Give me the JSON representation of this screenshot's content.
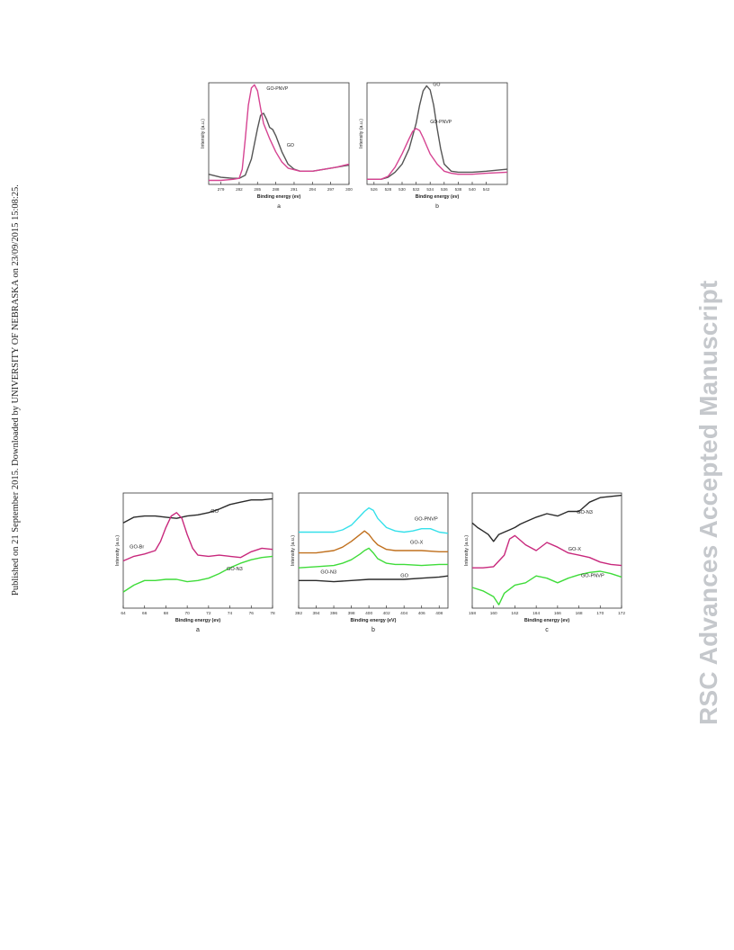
{
  "side_text": "Published on 21 September 2015. Downloaded by UNIVERSITY OF NEBRASKA on 23/09/2015 15:08:25.",
  "watermark": "RSC Advances Accepted Manuscript",
  "colors": {
    "black": "#2a2a2a",
    "magenta": "#c8287c",
    "pink": "#d64492",
    "green": "#3fdc3a",
    "cyan": "#35e0ea",
    "orange": "#c0701e",
    "gray": "#555555"
  },
  "chart_data": [
    {
      "id": "top_a",
      "type": "line",
      "panel_label": "a",
      "xlabel": "Binding energy (ev)",
      "ylabel": "Intensity (a.u.)",
      "xlim": [
        277,
        300
      ],
      "ylim": [
        0,
        1
      ],
      "ticks": [
        "279",
        "282",
        "285",
        "288",
        "291",
        "294",
        "297",
        "300"
      ],
      "tick_values": [
        279,
        282,
        285,
        288,
        291,
        294,
        297,
        300
      ],
      "series": [
        {
          "name": "GO",
          "color": "#555555",
          "x": [
            277,
            279,
            281,
            282,
            283,
            284,
            285,
            285.5,
            286,
            286.5,
            287,
            287.5,
            288,
            289,
            290,
            291,
            292,
            294,
            296,
            298,
            300
          ],
          "y": [
            0.1,
            0.07,
            0.06,
            0.06,
            0.09,
            0.25,
            0.55,
            0.68,
            0.7,
            0.64,
            0.56,
            0.54,
            0.48,
            0.32,
            0.2,
            0.15,
            0.13,
            0.13,
            0.15,
            0.17,
            0.19
          ]
        },
        {
          "name": "GO-PNVP",
          "color": "#d64492",
          "x": [
            277,
            279,
            281,
            282,
            282.5,
            283,
            283.5,
            284,
            284.5,
            285,
            285.5,
            286,
            287,
            288,
            289,
            290,
            292,
            294,
            296,
            298,
            300
          ],
          "y": [
            0.04,
            0.04,
            0.05,
            0.06,
            0.15,
            0.45,
            0.78,
            0.95,
            0.98,
            0.92,
            0.75,
            0.6,
            0.45,
            0.32,
            0.22,
            0.16,
            0.13,
            0.13,
            0.15,
            0.17,
            0.2
          ]
        }
      ],
      "labels": [
        {
          "text": "GO-PNVP",
          "x": 286.5,
          "y": 0.93
        },
        {
          "text": "GO",
          "x": 289.8,
          "y": 0.37
        }
      ]
    },
    {
      "id": "top_b",
      "type": "line",
      "panel_label": "b",
      "xlabel": "Binding energy (ev)",
      "ylabel": "Intensity (a.u.)",
      "xlim": [
        525,
        545
      ],
      "ylim": [
        0,
        1
      ],
      "ticks": [
        "526",
        "528",
        "530",
        "532",
        "534",
        "536",
        "538",
        "540",
        "542"
      ],
      "tick_values": [
        526,
        528,
        530,
        532,
        534,
        536,
        538,
        540,
        542
      ],
      "series": [
        {
          "name": "GO",
          "color": "#555555",
          "x": [
            525,
            527,
            528,
            529,
            530,
            531,
            532,
            532.5,
            533,
            533.5,
            534,
            534.5,
            535,
            535.5,
            536,
            537,
            538,
            540,
            542,
            545
          ],
          "y": [
            0.05,
            0.05,
            0.07,
            0.12,
            0.2,
            0.35,
            0.6,
            0.78,
            0.92,
            0.97,
            0.93,
            0.78,
            0.55,
            0.35,
            0.2,
            0.13,
            0.12,
            0.12,
            0.13,
            0.15
          ]
        },
        {
          "name": "GO-PNVP",
          "color": "#d64492",
          "x": [
            525,
            527,
            528,
            529,
            530,
            531,
            531.5,
            532,
            532.5,
            533,
            533.5,
            534,
            535,
            536,
            537,
            538,
            540,
            542,
            545
          ],
          "y": [
            0.05,
            0.05,
            0.08,
            0.17,
            0.3,
            0.45,
            0.52,
            0.55,
            0.53,
            0.46,
            0.38,
            0.3,
            0.2,
            0.13,
            0.11,
            0.1,
            0.1,
            0.11,
            0.12
          ]
        }
      ],
      "labels": [
        {
          "text": "GO",
          "x": 534.4,
          "y": 0.97
        },
        {
          "text": "GO-PNVP",
          "x": 534.0,
          "y": 0.6
        }
      ]
    },
    {
      "id": "bottom_a",
      "type": "line",
      "panel_label": "a",
      "xlabel": "Binding energy (ev)",
      "ylabel": "Intensity (a.u.)",
      "xlim": [
        64,
        78
      ],
      "ylim": [
        0,
        1
      ],
      "ticks": [
        "64",
        "66",
        "68",
        "70",
        "72",
        "74",
        "76",
        "78"
      ],
      "tick_values": [
        64,
        66,
        68,
        70,
        72,
        74,
        76,
        78
      ],
      "series": [
        {
          "name": "GO",
          "color": "#2a2a2a",
          "x": [
            64,
            65,
            66,
            67,
            68,
            69,
            70,
            71,
            72,
            73,
            74,
            75,
            76,
            77,
            78
          ],
          "y": [
            0.74,
            0.79,
            0.8,
            0.8,
            0.79,
            0.78,
            0.8,
            0.81,
            0.83,
            0.86,
            0.9,
            0.92,
            0.94,
            0.94,
            0.95
          ]
        },
        {
          "name": "GO-Br",
          "color": "#c8287c",
          "x": [
            64,
            65,
            66,
            67,
            67.5,
            68,
            68.5,
            69,
            69.5,
            70,
            70.5,
            71,
            72,
            73,
            74,
            75,
            76,
            77,
            78
          ],
          "y": [
            0.41,
            0.45,
            0.47,
            0.5,
            0.58,
            0.7,
            0.8,
            0.83,
            0.78,
            0.64,
            0.52,
            0.46,
            0.45,
            0.46,
            0.45,
            0.44,
            0.49,
            0.52,
            0.51
          ]
        },
        {
          "name": "GO-N3",
          "color": "#3fdc3a",
          "x": [
            64,
            65,
            66,
            67,
            68,
            69,
            70,
            71,
            72,
            73,
            74,
            75,
            76,
            77,
            78
          ],
          "y": [
            0.14,
            0.2,
            0.24,
            0.24,
            0.25,
            0.25,
            0.23,
            0.24,
            0.26,
            0.3,
            0.35,
            0.39,
            0.42,
            0.44,
            0.45
          ]
        }
      ],
      "labels": [
        {
          "text": "GO",
          "x": 72.2,
          "y": 0.83
        },
        {
          "text": "GO-Br",
          "x": 64.6,
          "y": 0.52
        },
        {
          "text": "GO-N3",
          "x": 73.7,
          "y": 0.33
        }
      ]
    },
    {
      "id": "bottom_b",
      "type": "line",
      "panel_label": "b",
      "xlabel": "Binding energy (eV)",
      "ylabel": "Intensity (a.u.)",
      "xlim": [
        392,
        409
      ],
      "ylim": [
        0,
        1
      ],
      "ticks": [
        "392",
        "394",
        "396",
        "398",
        "400",
        "402",
        "404",
        "406",
        "408"
      ],
      "tick_values": [
        392,
        394,
        396,
        398,
        400,
        402,
        404,
        406,
        408
      ],
      "series": [
        {
          "name": "GO-PNVP",
          "color": "#35e0ea",
          "x": [
            392,
            394,
            396,
            397,
            398,
            399,
            399.5,
            400,
            400.5,
            401,
            402,
            403,
            404,
            405,
            406,
            407,
            408,
            409
          ],
          "y": [
            0.66,
            0.66,
            0.66,
            0.68,
            0.72,
            0.8,
            0.84,
            0.87,
            0.85,
            0.78,
            0.7,
            0.67,
            0.66,
            0.67,
            0.69,
            0.69,
            0.66,
            0.65
          ]
        },
        {
          "name": "GO-X",
          "color": "#c0701e",
          "x": [
            392,
            394,
            396,
            397,
            398,
            399,
            399.5,
            400,
            400.5,
            401,
            402,
            403,
            404,
            406,
            408,
            409
          ],
          "y": [
            0.48,
            0.48,
            0.5,
            0.53,
            0.58,
            0.64,
            0.67,
            0.64,
            0.59,
            0.55,
            0.51,
            0.5,
            0.5,
            0.5,
            0.49,
            0.49
          ]
        },
        {
          "name": "GO-N3",
          "color": "#3fdc3a",
          "x": [
            392,
            394,
            396,
            397,
            398,
            399,
            399.5,
            400,
            400.5,
            401,
            402,
            403,
            404,
            406,
            408,
            409
          ],
          "y": [
            0.35,
            0.36,
            0.37,
            0.39,
            0.42,
            0.47,
            0.5,
            0.52,
            0.48,
            0.43,
            0.39,
            0.38,
            0.38,
            0.37,
            0.38,
            0.38
          ]
        },
        {
          "name": "GO",
          "color": "#2a2a2a",
          "x": [
            392,
            394,
            396,
            398,
            400,
            402,
            404,
            406,
            408,
            409
          ],
          "y": [
            0.24,
            0.24,
            0.23,
            0.24,
            0.25,
            0.25,
            0.25,
            0.26,
            0.27,
            0.28
          ]
        }
      ],
      "labels": [
        {
          "text": "GO-PNVP",
          "x": 405.2,
          "y": 0.76
        },
        {
          "text": "GO-X",
          "x": 404.7,
          "y": 0.56
        },
        {
          "text": "GO-N3",
          "x": 394.5,
          "y": 0.3
        },
        {
          "text": "GO",
          "x": 403.6,
          "y": 0.27
        }
      ]
    },
    {
      "id": "bottom_c",
      "type": "line",
      "panel_label": "c",
      "xlabel": "Binding energy (ev)",
      "ylabel": "Intensity (a.u.)",
      "xlim": [
        158,
        172
      ],
      "ylim": [
        0,
        1
      ],
      "ticks": [
        "158",
        "160",
        "162",
        "164",
        "166",
        "168",
        "170",
        "172"
      ],
      "tick_values": [
        158,
        160,
        162,
        164,
        166,
        168,
        170,
        172
      ],
      "series": [
        {
          "name": "GO-N3",
          "color": "#2a2a2a",
          "x": [
            158,
            158.5,
            159,
            159.5,
            160,
            160.5,
            161,
            161.5,
            162,
            162.5,
            163,
            164,
            165,
            166,
            167,
            168,
            168.5,
            169,
            170,
            171,
            172
          ],
          "y": [
            0.74,
            0.7,
            0.67,
            0.64,
            0.58,
            0.64,
            0.66,
            0.68,
            0.7,
            0.73,
            0.75,
            0.79,
            0.82,
            0.8,
            0.84,
            0.84,
            0.88,
            0.92,
            0.96,
            0.97,
            0.98
          ]
        },
        {
          "name": "GO-X",
          "color": "#c8287c",
          "x": [
            158,
            159,
            160,
            161,
            161.5,
            162,
            162.5,
            163,
            164,
            165,
            166,
            167,
            168,
            169,
            170,
            171,
            172
          ],
          "y": [
            0.35,
            0.35,
            0.36,
            0.46,
            0.6,
            0.63,
            0.59,
            0.55,
            0.5,
            0.57,
            0.53,
            0.48,
            0.46,
            0.44,
            0.4,
            0.38,
            0.37
          ]
        },
        {
          "name": "GO-PNVP",
          "color": "#3fdc3a",
          "x": [
            158,
            159,
            160,
            160.5,
            161,
            162,
            163,
            164,
            165,
            166,
            167,
            168,
            169,
            170,
            171,
            172
          ],
          "y": [
            0.18,
            0.15,
            0.1,
            0.03,
            0.13,
            0.2,
            0.22,
            0.28,
            0.26,
            0.22,
            0.26,
            0.29,
            0.31,
            0.32,
            0.3,
            0.27
          ]
        }
      ],
      "labels": [
        {
          "text": "GO-N3",
          "x": 167.8,
          "y": 0.82
        },
        {
          "text": "GO-X",
          "x": 167.0,
          "y": 0.5
        },
        {
          "text": "GO-PNVP",
          "x": 168.2,
          "y": 0.27
        }
      ]
    }
  ]
}
